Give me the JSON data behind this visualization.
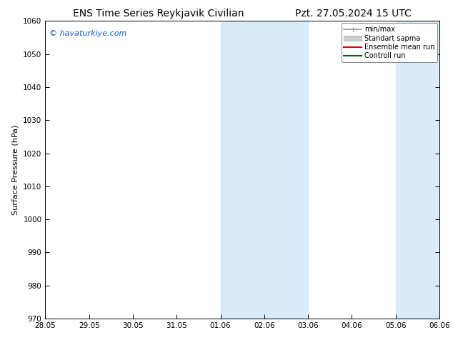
{
  "title_left": "ENS Time Series Reykjavik Civilian",
  "title_right": "Pzt. 27.05.2024 15 UTC",
  "ylabel": "Surface Pressure (hPa)",
  "ylim": [
    970,
    1060
  ],
  "yticks": [
    970,
    980,
    990,
    1000,
    1010,
    1020,
    1030,
    1040,
    1050,
    1060
  ],
  "xtick_labels": [
    "28.05",
    "29.05",
    "30.05",
    "31.05",
    "01.06",
    "02.06",
    "03.06",
    "04.06",
    "05.06",
    "06.06"
  ],
  "xtick_positions": [
    0,
    1,
    2,
    3,
    4,
    5,
    6,
    7,
    8,
    9
  ],
  "shaded_regions": [
    {
      "x_start": 4,
      "x_end": 6
    },
    {
      "x_start": 8,
      "x_end": 9
    }
  ],
  "shaded_color": "#daeaf8",
  "watermark": "© havaturkiye.com",
  "watermark_color": "#1155cc",
  "legend_entries": [
    {
      "label": "min/max",
      "color": "#999999",
      "lw": 1.2
    },
    {
      "label": "Standart sapma",
      "color": "#cccccc",
      "lw": 8
    },
    {
      "label": "Ensemble mean run",
      "color": "#dd0000",
      "lw": 1.5
    },
    {
      "label": "Controll run",
      "color": "#006600",
      "lw": 1.5
    }
  ],
  "bg_color": "#ffffff",
  "title_fontsize": 10,
  "tick_fontsize": 7.5,
  "ylabel_fontsize": 8,
  "watermark_fontsize": 8
}
